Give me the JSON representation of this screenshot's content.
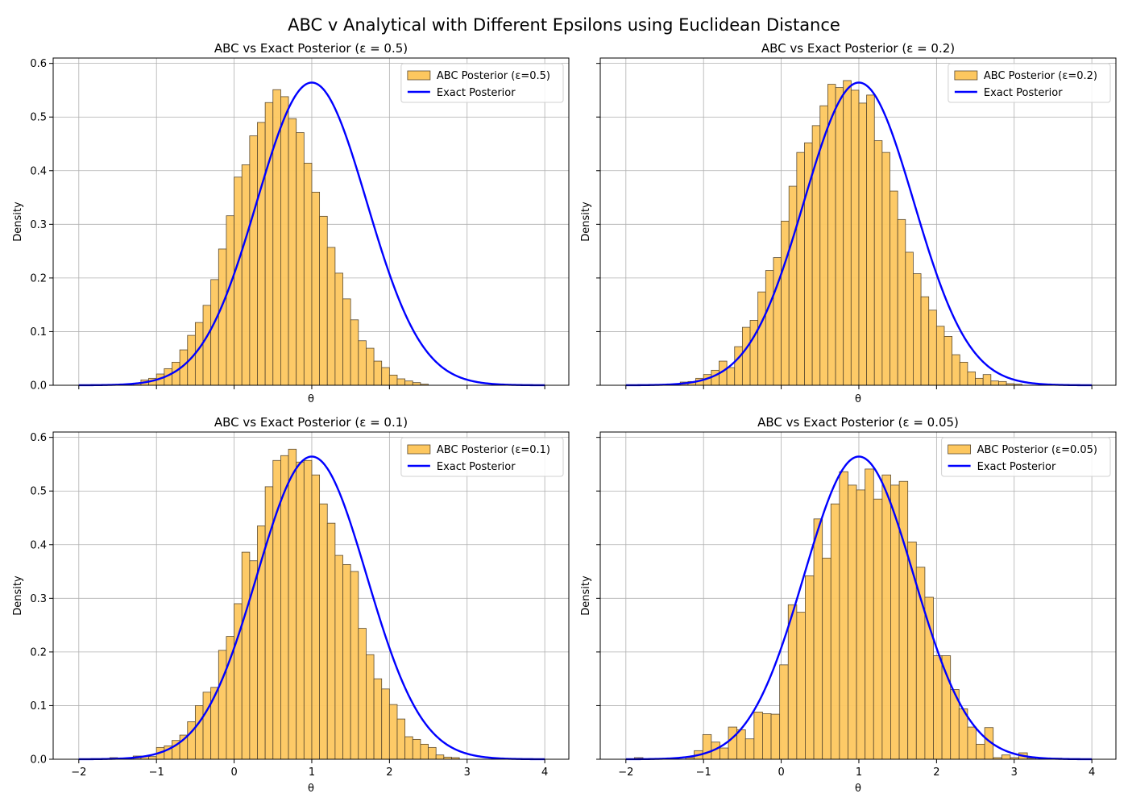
{
  "figure": {
    "suptitle": "ABC v Analytical with Different Epsilons using Euclidean Distance"
  },
  "colors": {
    "hist_fill": "#fdc75f",
    "hist_edge": "#5a4a30",
    "exact_line": "#0000ff",
    "grid": "#b0b0b0"
  },
  "chart_data": [
    {
      "type": "bar",
      "title": "ABC vs Exact Posterior (ε = 0.5)",
      "xlabel": "θ",
      "ylabel": "Density",
      "xlim": [
        -2.33,
        4.31
      ],
      "ylim": [
        0,
        0.61
      ],
      "xticks": [
        -2,
        -1,
        0,
        1,
        2,
        3,
        4
      ],
      "yticks": [
        0.0,
        0.1,
        0.2,
        0.3,
        0.4,
        0.5,
        0.6
      ],
      "show_xticklabels": false,
      "show_yticklabels": true,
      "grid": true,
      "legend": {
        "position": "top-right",
        "entries": [
          "ABC Posterior (ε=0.5)",
          "Exact Posterior"
        ]
      },
      "bin_width": 0.1,
      "bins": [
        [
          -1.3,
          0.003
        ],
        [
          -1.2,
          0.01
        ],
        [
          -1.1,
          0.013
        ],
        [
          -1.0,
          0.021
        ],
        [
          -0.9,
          0.031
        ],
        [
          -0.8,
          0.043
        ],
        [
          -0.7,
          0.066
        ],
        [
          -0.6,
          0.093
        ],
        [
          -0.5,
          0.117
        ],
        [
          -0.4,
          0.149
        ],
        [
          -0.3,
          0.197
        ],
        [
          -0.2,
          0.254
        ],
        [
          -0.1,
          0.316
        ],
        [
          0.0,
          0.388
        ],
        [
          0.1,
          0.411
        ],
        [
          0.2,
          0.465
        ],
        [
          0.3,
          0.49
        ],
        [
          0.4,
          0.527
        ],
        [
          0.5,
          0.551
        ],
        [
          0.6,
          0.538
        ],
        [
          0.7,
          0.497
        ],
        [
          0.8,
          0.471
        ],
        [
          0.9,
          0.414
        ],
        [
          1.0,
          0.36
        ],
        [
          1.1,
          0.315
        ],
        [
          1.2,
          0.257
        ],
        [
          1.3,
          0.209
        ],
        [
          1.4,
          0.161
        ],
        [
          1.5,
          0.122
        ],
        [
          1.6,
          0.083
        ],
        [
          1.7,
          0.069
        ],
        [
          1.8,
          0.045
        ],
        [
          1.9,
          0.033
        ],
        [
          2.0,
          0.019
        ],
        [
          2.1,
          0.012
        ],
        [
          2.2,
          0.008
        ],
        [
          2.3,
          0.005
        ],
        [
          2.4,
          0.002
        ]
      ],
      "exact": {
        "mu": 1.0,
        "sigma": 0.707,
        "x_range": [
          -2,
          4
        ]
      }
    },
    {
      "type": "bar",
      "title": "ABC vs Exact Posterior (ε = 0.2)",
      "xlabel": "θ",
      "ylabel": "Density",
      "xlim": [
        -2.33,
        4.31
      ],
      "ylim": [
        0,
        0.61
      ],
      "xticks": [
        -2,
        -1,
        0,
        1,
        2,
        3,
        4
      ],
      "yticks": [
        0.0,
        0.1,
        0.2,
        0.3,
        0.4,
        0.5,
        0.6
      ],
      "show_xticklabels": false,
      "show_yticklabels": false,
      "grid": true,
      "legend": {
        "position": "top-right",
        "entries": [
          "ABC Posterior (ε=0.2)",
          "Exact Posterior"
        ]
      },
      "bin_width": 0.1,
      "bins": [
        [
          -1.3,
          0.006
        ],
        [
          -1.2,
          0.007
        ],
        [
          -1.1,
          0.013
        ],
        [
          -1.0,
          0.02
        ],
        [
          -0.9,
          0.028
        ],
        [
          -0.8,
          0.045
        ],
        [
          -0.7,
          0.033
        ],
        [
          -0.6,
          0.072
        ],
        [
          -0.5,
          0.108
        ],
        [
          -0.4,
          0.121
        ],
        [
          -0.3,
          0.174
        ],
        [
          -0.2,
          0.214
        ],
        [
          -0.1,
          0.238
        ],
        [
          0.0,
          0.306
        ],
        [
          0.1,
          0.371
        ],
        [
          0.2,
          0.434
        ],
        [
          0.3,
          0.452
        ],
        [
          0.4,
          0.484
        ],
        [
          0.5,
          0.521
        ],
        [
          0.6,
          0.561
        ],
        [
          0.7,
          0.555
        ],
        [
          0.8,
          0.568
        ],
        [
          0.9,
          0.55
        ],
        [
          1.0,
          0.526
        ],
        [
          1.1,
          0.541
        ],
        [
          1.2,
          0.456
        ],
        [
          1.3,
          0.434
        ],
        [
          1.4,
          0.362
        ],
        [
          1.5,
          0.309
        ],
        [
          1.6,
          0.248
        ],
        [
          1.7,
          0.208
        ],
        [
          1.8,
          0.165
        ],
        [
          1.9,
          0.14
        ],
        [
          2.0,
          0.11
        ],
        [
          2.1,
          0.091
        ],
        [
          2.2,
          0.057
        ],
        [
          2.3,
          0.043
        ],
        [
          2.4,
          0.025
        ],
        [
          2.5,
          0.013
        ],
        [
          2.6,
          0.02
        ],
        [
          2.7,
          0.008
        ],
        [
          2.8,
          0.007
        ],
        [
          2.9,
          0.003
        ],
        [
          3.0,
          0.002
        ]
      ],
      "exact": {
        "mu": 1.0,
        "sigma": 0.707,
        "x_range": [
          -2,
          4
        ]
      }
    },
    {
      "type": "bar",
      "title": "ABC vs Exact Posterior (ε = 0.1)",
      "xlabel": "θ",
      "ylabel": "Density",
      "xlim": [
        -2.33,
        4.31
      ],
      "ylim": [
        0,
        0.61
      ],
      "xticks": [
        -2,
        -1,
        0,
        1,
        2,
        3,
        4
      ],
      "yticks": [
        0.0,
        0.1,
        0.2,
        0.3,
        0.4,
        0.5,
        0.6
      ],
      "show_xticklabels": true,
      "show_yticklabels": true,
      "grid": true,
      "legend": {
        "position": "top-right",
        "entries": [
          "ABC Posterior (ε=0.1)",
          "Exact Posterior"
        ]
      },
      "bin_width": 0.1,
      "bins": [
        [
          -1.6,
          0.003
        ],
        [
          -1.5,
          0.002
        ],
        [
          -1.3,
          0.006
        ],
        [
          -1.2,
          0.006
        ],
        [
          -1.1,
          0.005
        ],
        [
          -1.0,
          0.022
        ],
        [
          -0.9,
          0.025
        ],
        [
          -0.8,
          0.035
        ],
        [
          -0.7,
          0.045
        ],
        [
          -0.6,
          0.07
        ],
        [
          -0.5,
          0.1
        ],
        [
          -0.4,
          0.125
        ],
        [
          -0.3,
          0.134
        ],
        [
          -0.2,
          0.203
        ],
        [
          -0.1,
          0.229
        ],
        [
          0.0,
          0.29
        ],
        [
          0.1,
          0.386
        ],
        [
          0.2,
          0.37
        ],
        [
          0.3,
          0.435
        ],
        [
          0.4,
          0.508
        ],
        [
          0.5,
          0.557
        ],
        [
          0.6,
          0.566
        ],
        [
          0.7,
          0.578
        ],
        [
          0.8,
          0.554
        ],
        [
          0.9,
          0.557
        ],
        [
          1.0,
          0.53
        ],
        [
          1.1,
          0.476
        ],
        [
          1.2,
          0.44
        ],
        [
          1.3,
          0.38
        ],
        [
          1.4,
          0.363
        ],
        [
          1.5,
          0.35
        ],
        [
          1.6,
          0.244
        ],
        [
          1.7,
          0.195
        ],
        [
          1.8,
          0.15
        ],
        [
          1.9,
          0.131
        ],
        [
          2.0,
          0.102
        ],
        [
          2.1,
          0.075
        ],
        [
          2.2,
          0.042
        ],
        [
          2.3,
          0.037
        ],
        [
          2.4,
          0.028
        ],
        [
          2.5,
          0.022
        ],
        [
          2.6,
          0.008
        ],
        [
          2.7,
          0.004
        ],
        [
          2.8,
          0.003
        ]
      ],
      "exact": {
        "mu": 1.0,
        "sigma": 0.707,
        "x_range": [
          -2,
          4
        ]
      }
    },
    {
      "type": "bar",
      "title": "ABC vs Exact Posterior (ε = 0.05)",
      "xlabel": "θ",
      "ylabel": "Density",
      "xlim": [
        -2.33,
        4.31
      ],
      "ylim": [
        0,
        0.61
      ],
      "xticks": [
        -2,
        -1,
        0,
        1,
        2,
        3,
        4
      ],
      "yticks": [
        0.0,
        0.1,
        0.2,
        0.3,
        0.4,
        0.5,
        0.6
      ],
      "show_xticklabels": true,
      "show_yticklabels": false,
      "grid": true,
      "legend": {
        "position": "top-right",
        "entries": [
          "ABC Posterior (ε=0.05)",
          "Exact Posterior"
        ]
      },
      "bin_width": 0.11,
      "bins": [
        [
          -1.89,
          0.003
        ],
        [
          -1.23,
          0.003
        ],
        [
          -1.12,
          0.016
        ],
        [
          -1.01,
          0.046
        ],
        [
          -0.9,
          0.032
        ],
        [
          -0.79,
          0.021
        ],
        [
          -0.68,
          0.06
        ],
        [
          -0.57,
          0.055
        ],
        [
          -0.46,
          0.038
        ],
        [
          -0.35,
          0.088
        ],
        [
          -0.24,
          0.085
        ],
        [
          -0.13,
          0.084
        ],
        [
          -0.02,
          0.176
        ],
        [
          0.09,
          0.288
        ],
        [
          0.2,
          0.274
        ],
        [
          0.31,
          0.342
        ],
        [
          0.42,
          0.448
        ],
        [
          0.53,
          0.375
        ],
        [
          0.64,
          0.476
        ],
        [
          0.75,
          0.536
        ],
        [
          0.86,
          0.511
        ],
        [
          0.97,
          0.502
        ],
        [
          1.08,
          0.541
        ],
        [
          1.19,
          0.485
        ],
        [
          1.3,
          0.53
        ],
        [
          1.41,
          0.511
        ],
        [
          1.52,
          0.518
        ],
        [
          1.63,
          0.405
        ],
        [
          1.74,
          0.358
        ],
        [
          1.85,
          0.302
        ],
        [
          1.96,
          0.193
        ],
        [
          2.07,
          0.193
        ],
        [
          2.18,
          0.13
        ],
        [
          2.29,
          0.094
        ],
        [
          2.4,
          0.06
        ],
        [
          2.51,
          0.028
        ],
        [
          2.62,
          0.059
        ],
        [
          2.73,
          0.003
        ],
        [
          2.84,
          0.008
        ],
        [
          2.95,
          0.003
        ],
        [
          3.06,
          0.012
        ],
        [
          3.17,
          0.002
        ],
        [
          3.5,
          0.002
        ]
      ],
      "exact": {
        "mu": 1.0,
        "sigma": 0.707,
        "x_range": [
          -2,
          4
        ]
      }
    }
  ]
}
